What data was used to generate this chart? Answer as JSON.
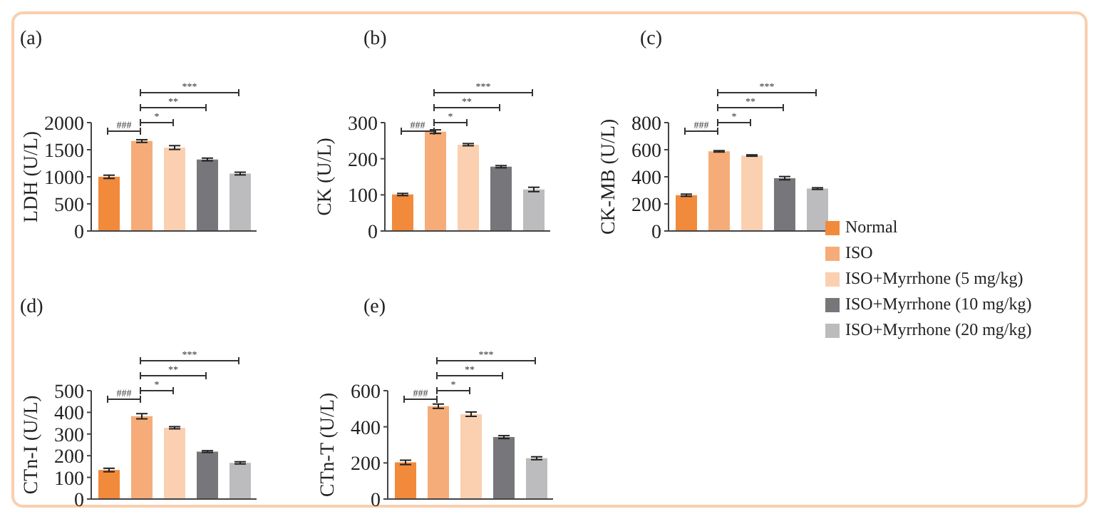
{
  "chart_data": [
    {
      "type": "bar",
      "title": "(a)",
      "ylabel": "LDH (U/L)",
      "categories": [
        null
      ],
      "series": [
        {
          "color": "#f28a3c",
          "values": [
            1000
          ],
          "errors": [
            30
          ]
        },
        {
          "color": "#f6ac78",
          "values": [
            1660
          ],
          "errors": [
            25
          ]
        },
        {
          "color": "#fad0b0",
          "values": [
            1540
          ],
          "errors": [
            35
          ]
        },
        {
          "color": "#77777b",
          "values": [
            1320
          ],
          "errors": [
            25
          ]
        },
        {
          "color": "#bcbcbe",
          "values": [
            1060
          ],
          "errors": [
            25
          ]
        }
      ],
      "ylim": [
        0,
        2000
      ],
      "yticks": [
        0,
        500,
        1000,
        1500,
        2000
      ],
      "tick_labels": "y",
      "legend": false,
      "annotations": [
        "###",
        "*",
        "**",
        "***"
      ]
    },
    {
      "type": "bar",
      "title": "(b)",
      "ylabel": "CK (U/L)",
      "categories": [
        null
      ],
      "series": [
        {
          "color": "#f28a3c",
          "values": [
            101
          ],
          "errors": [
            3
          ]
        },
        {
          "color": "#f6ac78",
          "values": [
            275
          ],
          "errors": [
            5
          ]
        },
        {
          "color": "#fad0b0",
          "values": [
            239
          ],
          "errors": [
            3
          ]
        },
        {
          "color": "#77777b",
          "values": [
            178
          ],
          "errors": [
            3
          ]
        },
        {
          "color": "#bcbcbe",
          "values": [
            115
          ],
          "errors": [
            6
          ]
        }
      ],
      "ylim": [
        0,
        300
      ],
      "yticks": [
        0,
        100,
        200,
        300
      ],
      "tick_labels": "y",
      "legend": false,
      "annotations": [
        "###",
        "*",
        "**",
        "***"
      ]
    },
    {
      "type": "bar",
      "title": "(c)",
      "ylabel": "CK-MB (U/L)",
      "categories": [
        null
      ],
      "series": [
        {
          "name": "Normal",
          "color": "#f28a3c",
          "values": [
            264
          ],
          "errors": [
            8
          ]
        },
        {
          "name": "ISO",
          "color": "#f6ac78",
          "values": [
            588
          ],
          "errors": [
            5
          ]
        },
        {
          "name": "ISO+Myrrhone (5 mg/kg)",
          "color": "#fad0b0",
          "values": [
            557
          ],
          "errors": [
            5
          ]
        },
        {
          "name": "ISO+Myrrhone (10 mg/kg)",
          "color": "#77777b",
          "values": [
            390
          ],
          "errors": [
            12
          ]
        },
        {
          "name": "ISO+Myrrhone (20 mg/kg)",
          "color": "#bcbcbe",
          "values": [
            313
          ],
          "errors": [
            6
          ]
        }
      ],
      "ylim": [
        0,
        800
      ],
      "yticks": [
        0,
        200,
        400,
        600,
        800
      ],
      "tick_labels": "y",
      "legend": "right",
      "annotations": [
        "###",
        "*",
        "**",
        "***"
      ]
    },
    {
      "type": "bar",
      "title": "(d)",
      "ylabel": "CTn-I (U/L)",
      "categories": [
        null
      ],
      "series": [
        {
          "color": "#f28a3c",
          "values": [
            134
          ],
          "errors": [
            8
          ]
        },
        {
          "color": "#f6ac78",
          "values": [
            382
          ],
          "errors": [
            12
          ]
        },
        {
          "color": "#fad0b0",
          "values": [
            329
          ],
          "errors": [
            5
          ]
        },
        {
          "color": "#77777b",
          "values": [
            219
          ],
          "errors": [
            4
          ]
        },
        {
          "color": "#bcbcbe",
          "values": [
            167
          ],
          "errors": [
            5
          ]
        }
      ],
      "ylim": [
        0,
        500
      ],
      "yticks": [
        0,
        100,
        200,
        300,
        400,
        500
      ],
      "tick_labels": "y",
      "legend": false,
      "annotations": [
        "###",
        "*",
        "**",
        "***"
      ]
    },
    {
      "type": "bar",
      "title": "(e)",
      "ylabel": "CTn-T (U/L)",
      "categories": [
        null
      ],
      "series": [
        {
          "color": "#f28a3c",
          "values": [
            203
          ],
          "errors": [
            12
          ]
        },
        {
          "color": "#f6ac78",
          "values": [
            514
          ],
          "errors": [
            12
          ]
        },
        {
          "color": "#fad0b0",
          "values": [
            470
          ],
          "errors": [
            12
          ]
        },
        {
          "color": "#77777b",
          "values": [
            343
          ],
          "errors": [
            8
          ]
        },
        {
          "color": "#bcbcbe",
          "values": [
            226
          ],
          "errors": [
            8
          ]
        }
      ],
      "ylim": [
        0,
        600
      ],
      "yticks": [
        0,
        200,
        400,
        600
      ],
      "tick_labels": "y",
      "legend": false,
      "annotations": [
        "###",
        "*",
        "**",
        "***"
      ]
    }
  ]
}
